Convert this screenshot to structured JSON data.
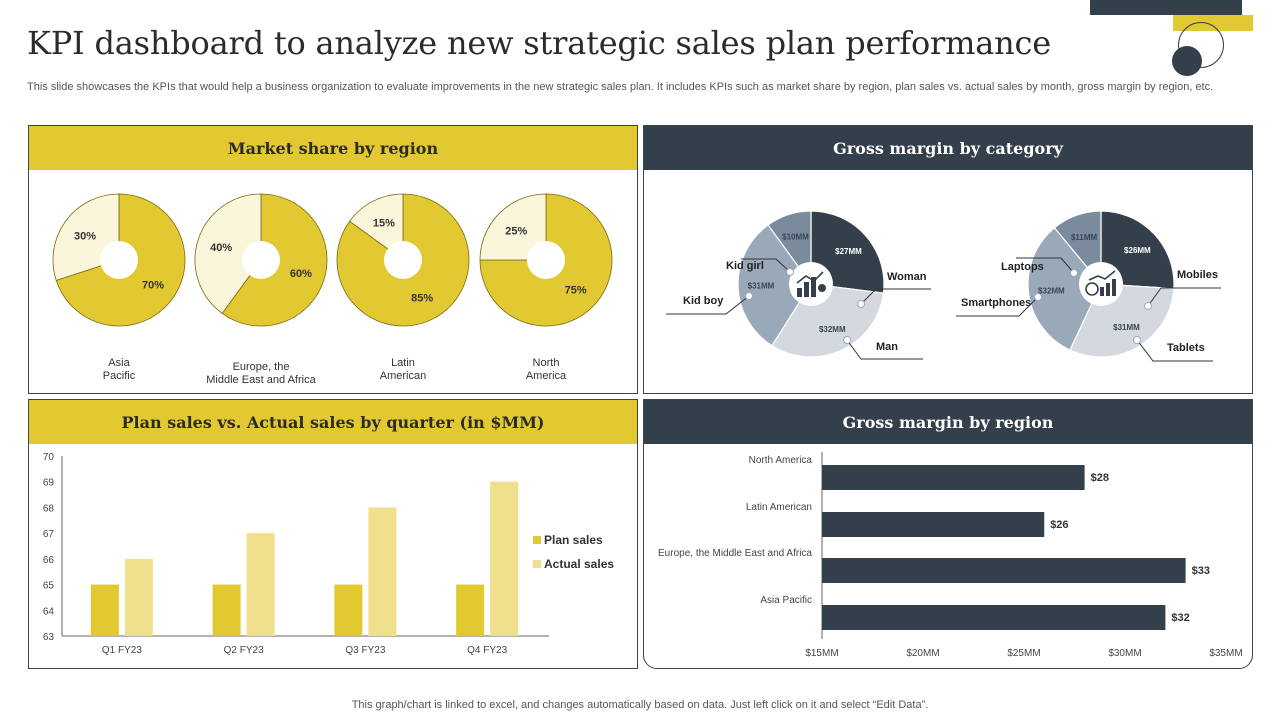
{
  "page": {
    "title": "KPI dashboard to analyze new strategic sales plan performance",
    "subtitle": "This slide showcases the KPIs that would help a business organization to evaluate improvements in the new strategic sales plan. It includes KPIs such as market share by region, plan sales vs. actual sales by month, gross margin by region, etc.",
    "footer": "This graph/chart is linked to excel,  and changes automatically based on data. Just left click on it and select “Edit Data”."
  },
  "colors": {
    "yellow": "#e2c932",
    "pale_yellow": "#faf6dc",
    "light_yellow": "#f0e08c",
    "navy": "#343f4c",
    "slate": "#9aa9ba",
    "light_gray": "#d4d9e0"
  },
  "chart_data": [
    {
      "type": "pie",
      "title": "Market share by region",
      "donuts": [
        {
          "label_lines": [
            "Asia",
            "Pacific"
          ],
          "slices": [
            {
              "label": "70%",
              "value": 70
            },
            {
              "label": "30%",
              "value": 30
            }
          ]
        },
        {
          "label_lines": [
            "Europe, the",
            "Middle East and Africa"
          ],
          "slices": [
            {
              "label": "60%",
              "value": 60
            },
            {
              "label": "40%",
              "value": 40
            }
          ]
        },
        {
          "label_lines": [
            "Latin",
            "American"
          ],
          "slices": [
            {
              "label": "85%",
              "value": 85
            },
            {
              "label": "15%",
              "value": 15
            }
          ]
        },
        {
          "label_lines": [
            "North",
            "America"
          ],
          "slices": [
            {
              "label": "75%",
              "value": 75
            },
            {
              "label": "25%",
              "value": 25
            }
          ]
        }
      ]
    },
    {
      "type": "pie",
      "title": "Gross margin by category",
      "donuts": [
        {
          "icon": "presentation-chart-icon",
          "slices": [
            {
              "name": "Woman",
              "value": 27,
              "label": "$27MM",
              "color": "#343f4c"
            },
            {
              "name": "Man",
              "value": 32,
              "label": "$32MM",
              "color": "#d4d9e0"
            },
            {
              "name": "Kid boy",
              "value": 31,
              "label": "$31MM",
              "color": "#9aa9ba"
            },
            {
              "name": "Kid girl",
              "value": 10,
              "label": "$10MM",
              "color": "#7a8b9e"
            }
          ]
        },
        {
          "icon": "money-growth-icon",
          "slices": [
            {
              "name": "Mobiles",
              "value": 26,
              "label": "$26MM",
              "color": "#343f4c"
            },
            {
              "name": "Tablets",
              "value": 31,
              "label": "$31MM",
              "color": "#d4d9e0"
            },
            {
              "name": "Smartphones",
              "value": 32,
              "label": "$32MM",
              "color": "#9aa9ba"
            },
            {
              "name": "Laptops",
              "value": 11,
              "label": "$11MM",
              "color": "#7a8b9e"
            }
          ]
        }
      ]
    },
    {
      "type": "bar",
      "title": "Plan sales vs. Actual sales by quarter (in $MM)",
      "categories": [
        "Q1 FY23",
        "Q2 FY23",
        "Q3 FY23",
        "Q4 FY23"
      ],
      "series": [
        {
          "name": "Plan sales",
          "values": [
            65,
            65,
            65,
            65
          ],
          "color": "#e2c932"
        },
        {
          "name": "Actual sales",
          "values": [
            66,
            67,
            68,
            69
          ],
          "color": "#f0e08c"
        }
      ],
      "yticks": [
        "63",
        "64",
        "65",
        "66",
        "67",
        "68",
        "69",
        "70"
      ],
      "ylim": [
        63,
        70
      ]
    },
    {
      "type": "bar",
      "orientation": "horizontal",
      "title": "Gross margin by region",
      "categories": [
        "North America",
        "Latin American",
        "Europe, the Middle East and Africa",
        "Asia Pacific"
      ],
      "values": [
        28,
        26,
        33,
        32
      ],
      "value_labels": [
        "$28",
        "$26",
        "$33",
        "$32"
      ],
      "xticks": [
        "$15MM",
        "$20MM",
        "$25MM",
        "$30MM",
        "$35MM"
      ],
      "xlim": [
        15,
        35
      ]
    }
  ]
}
